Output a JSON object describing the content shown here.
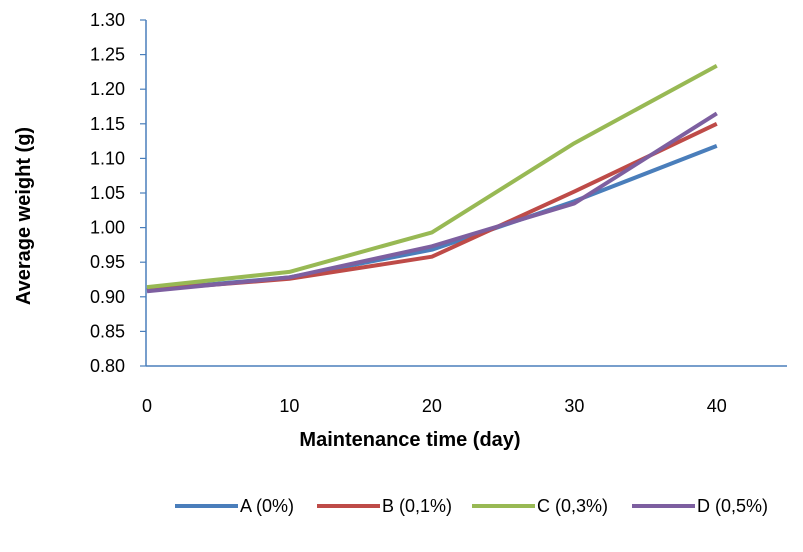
{
  "chart_data": {
    "type": "line",
    "title": "",
    "xlabel": "Maintenance time (day)",
    "ylabel": "Average weight (g)",
    "x": [
      0,
      10,
      20,
      30,
      40
    ],
    "x_ticks": [
      "0",
      "10",
      "20",
      "30",
      "40"
    ],
    "ylim": [
      0.8,
      1.3
    ],
    "y_ticks": [
      "0.80",
      "0.85",
      "0.90",
      "0.95",
      "1.00",
      "1.05",
      "1.10",
      "1.15",
      "1.20",
      "1.25",
      "1.30"
    ],
    "grid": false,
    "legend_position": "bottom",
    "series": [
      {
        "name": "A (0%)",
        "color": "#4a7ebb",
        "values": [
          0.91,
          0.928,
          0.968,
          1.038,
          1.118
        ]
      },
      {
        "name": "B (0,1%)",
        "color": "#be4b48",
        "values": [
          0.91,
          0.926,
          0.958,
          1.052,
          1.15
        ]
      },
      {
        "name": "C (0,3%)",
        "color": "#98b954",
        "values": [
          0.914,
          0.936,
          0.993,
          1.122,
          1.234
        ]
      },
      {
        "name": "D (0,5%)",
        "color": "#7d5fa0",
        "values": [
          0.908,
          0.928,
          0.973,
          1.035,
          1.165
        ]
      }
    ]
  }
}
